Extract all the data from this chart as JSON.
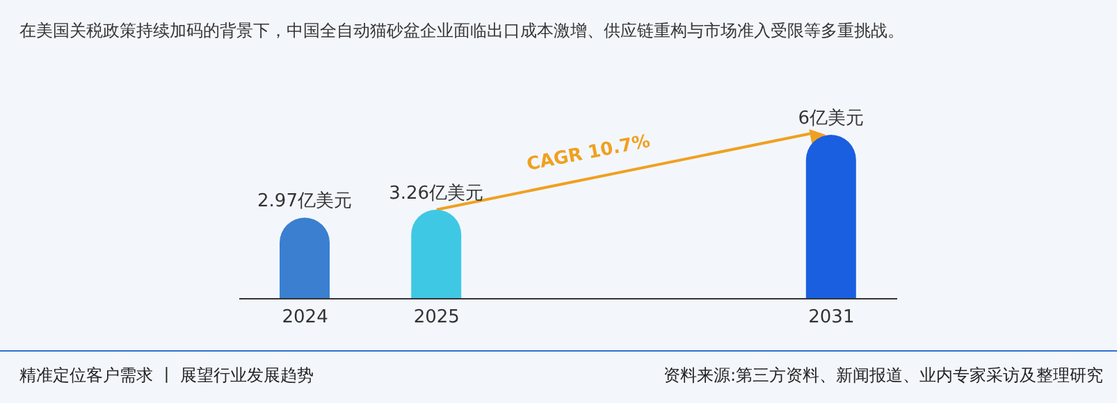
{
  "chart_data": {
    "type": "bar",
    "title": "在美国关税政策持续加码的背景下，中国全自动猫砂盆企业面临出口成本激增、供应链重构与市场准入受限等多重挑战。",
    "categories": [
      "2024",
      "2025",
      null,
      null,
      "2031"
    ],
    "values": [
      2.97,
      3.26,
      null,
      null,
      6
    ],
    "colors": [
      "#3a7fd0",
      "#3fc8e4",
      null,
      null,
      "#1a5fe0"
    ],
    "value_labels": [
      "2.97亿美元",
      "3.26亿美元",
      null,
      null,
      "6亿美元"
    ],
    "annotations": [
      "CAGR 10.7%",
      "精准定位客户需求 丨 展望行业发展趋势",
      "资料来源:第三方资料、新闻报道、业内专家采访及整理研究"
    ],
    "grid": false,
    "legend": false
  }
}
